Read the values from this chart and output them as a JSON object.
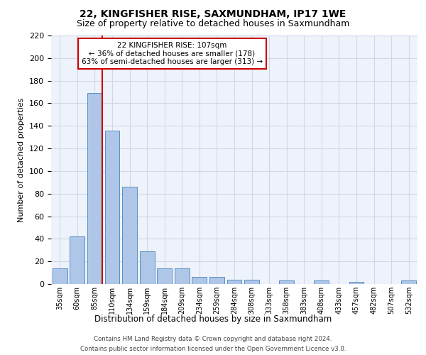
{
  "title": "22, KINGFISHER RISE, SAXMUNDHAM, IP17 1WE",
  "subtitle": "Size of property relative to detached houses in Saxmundham",
  "xlabel": "Distribution of detached houses by size in Saxmundham",
  "ylabel": "Number of detached properties",
  "footnote1": "Contains HM Land Registry data © Crown copyright and database right 2024.",
  "footnote2": "Contains public sector information licensed under the Open Government Licence v3.0.",
  "bar_values": [
    14,
    42,
    169,
    136,
    86,
    29,
    14,
    14,
    6,
    6,
    4,
    4,
    0,
    3,
    0,
    3,
    0,
    2,
    0,
    0,
    3
  ],
  "categories": [
    "35sqm",
    "60sqm",
    "85sqm",
    "110sqm",
    "134sqm",
    "159sqm",
    "184sqm",
    "209sqm",
    "234sqm",
    "259sqm",
    "284sqm",
    "308sqm",
    "333sqm",
    "358sqm",
    "383sqm",
    "408sqm",
    "433sqm",
    "457sqm",
    "482sqm",
    "507sqm",
    "532sqm"
  ],
  "bar_color": "#aec6e8",
  "bar_edge_color": "#5a8fc2",
  "annotation_line1": "22 KINGFISHER RISE: 107sqm",
  "annotation_line2": "← 36% of detached houses are smaller (178)",
  "annotation_line3": "63% of semi-detached houses are larger (313) →",
  "vline_bar_index": 2,
  "vline_color": "#cc0000",
  "annotation_box_color": "#ffffff",
  "annotation_box_edge": "#cc0000",
  "ylim": [
    0,
    220
  ],
  "yticks": [
    0,
    20,
    40,
    60,
    80,
    100,
    120,
    140,
    160,
    180,
    200,
    220
  ],
  "grid_color": "#d0d8e8",
  "background_color": "#eef2fa",
  "title_fontsize": 10,
  "subtitle_fontsize": 9
}
